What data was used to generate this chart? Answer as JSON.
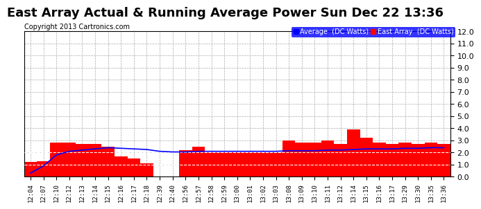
{
  "title": "East Array Actual & Running Average Power Sun Dec 22 13:36",
  "copyright": "Copyright 2013 Cartronics.com",
  "legend_labels": [
    "Average  (DC Watts)",
    "East Array  (DC Watts)"
  ],
  "legend_colors": [
    "#0000ff",
    "#ff0000"
  ],
  "background_color": "#ffffff",
  "plot_bg_color": "#ffffff",
  "ylim": [
    0.0,
    12.0
  ],
  "yticks": [
    0.0,
    1.0,
    2.0,
    3.0,
    4.0,
    5.0,
    6.0,
    7.0,
    8.0,
    9.0,
    10.0,
    11.0,
    12.0
  ],
  "bar_color": "#ff0000",
  "line_color": "#0000ff",
  "grid_color": "#aaaaaa",
  "tick_labels": [
    "12:04",
    "12:07",
    "12:10",
    "12:12",
    "12:13",
    "12:14",
    "12:15",
    "12:16",
    "12:17",
    "12:18",
    "12:39",
    "12:40",
    "12:56",
    "12:57",
    "12:58",
    "12:59",
    "13:00",
    "13:01",
    "13:02",
    "13:03",
    "13:08",
    "13:09",
    "13:10",
    "13:11",
    "13:12",
    "13:14",
    "13:15",
    "13:16",
    "13:17",
    "13:29",
    "13:30",
    "13:35",
    "13:36"
  ],
  "bar_values": [
    1.2,
    1.3,
    2.8,
    2.8,
    2.7,
    2.7,
    2.5,
    1.7,
    1.5,
    1.1,
    0.05,
    0.05,
    2.2,
    2.5,
    2.0,
    2.0,
    2.0,
    2.0,
    2.0,
    2.0,
    3.0,
    2.8,
    2.8,
    3.0,
    2.7,
    3.9,
    3.2,
    2.8,
    2.7,
    2.8,
    2.7,
    2.8,
    2.7
  ],
  "avg_values": [
    0.3,
    0.9,
    1.8,
    2.1,
    2.2,
    2.3,
    2.4,
    2.35,
    2.3,
    2.25,
    2.1,
    2.05,
    2.05,
    2.1,
    2.1,
    2.1,
    2.1,
    2.1,
    2.1,
    2.1,
    2.15,
    2.15,
    2.15,
    2.2,
    2.2,
    2.25,
    2.3,
    2.3,
    2.3,
    2.35,
    2.35,
    2.4,
    2.4
  ],
  "title_fontsize": 13,
  "copyright_fontsize": 7,
  "ytick_fontsize": 8,
  "xtick_fontsize": 6.5
}
